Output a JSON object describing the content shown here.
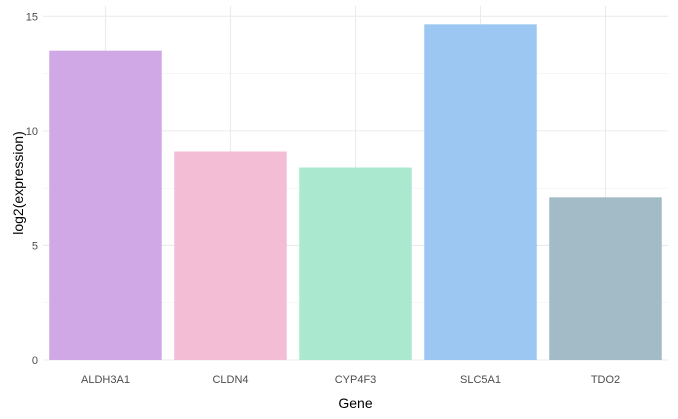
{
  "chart_data": {
    "type": "bar",
    "xlabel": "Gene",
    "ylabel": "log2(expression)",
    "categories": [
      "ALDH3A1",
      "CLDN4",
      "CYP4F3",
      "SLC5A1",
      "TDO2"
    ],
    "values": [
      13.5,
      9.1,
      8.4,
      14.65,
      7.1
    ],
    "colors": [
      "#cfa8e5",
      "#f4bdd6",
      "#aae8cf",
      "#9cc7f2",
      "#a2bbc6"
    ],
    "ylim": [
      0,
      15.45
    ],
    "yticks": [
      0,
      5,
      10,
      15
    ],
    "grid": true,
    "legend": "none"
  }
}
